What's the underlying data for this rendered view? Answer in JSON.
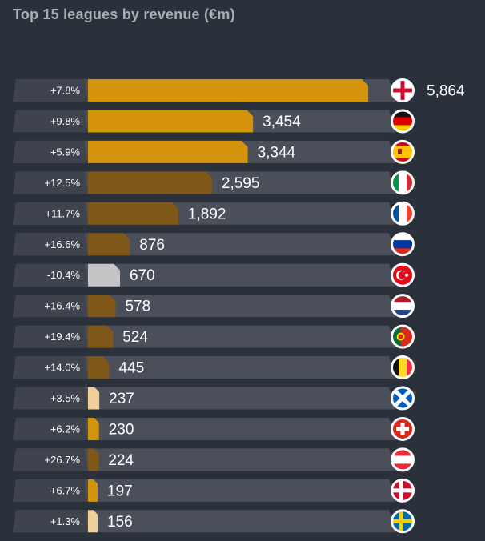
{
  "chart_data": {
    "type": "bar",
    "orientation": "horizontal",
    "title": "Top 15 leagues by revenue (€m)",
    "xlabel": "",
    "ylabel": "",
    "xlim": [
      0,
      5864
    ],
    "grid": false,
    "legend": "none",
    "categories": [
      "England",
      "Germany",
      "Spain",
      "Italy",
      "France",
      "Russia",
      "Turkey",
      "Netherlands",
      "Portugal",
      "Belgium",
      "Scotland",
      "Switzerland",
      "Austria",
      "Denmark",
      "Sweden"
    ],
    "values": [
      5864,
      3454,
      3344,
      2595,
      1892,
      876,
      670,
      578,
      524,
      445,
      237,
      230,
      224,
      197,
      156
    ],
    "value_labels": [
      "5,864",
      "3,454",
      "3,344",
      "2,595",
      "1,892",
      "876",
      "670",
      "578",
      "524",
      "445",
      "237",
      "230",
      "224",
      "197",
      "156"
    ],
    "growth_labels": [
      "+7.8%",
      "+9.8%",
      "+5.9%",
      "+12.5%",
      "+11.7%",
      "+16.6%",
      "-10.4%",
      "+16.4%",
      "+19.4%",
      "+14.0%",
      "+3.5%",
      "+6.2%",
      "+26.7%",
      "+6.7%",
      "+1.3%"
    ],
    "growth": [
      7.8,
      9.8,
      5.9,
      12.5,
      11.7,
      16.6,
      -10.4,
      16.4,
      19.4,
      14.0,
      3.5,
      6.2,
      26.7,
      6.7,
      1.3
    ],
    "flag_icons": [
      "england-flag-icon",
      "germany-flag-icon",
      "spain-flag-icon",
      "italy-flag-icon",
      "france-flag-icon",
      "russia-flag-icon",
      "turkey-flag-icon",
      "netherlands-flag-icon",
      "portugal-flag-icon",
      "belgium-flag-icon",
      "scotland-flag-icon",
      "switzerland-flag-icon",
      "austria-flag-icon",
      "denmark-flag-icon",
      "sweden-flag-icon"
    ],
    "bar_colors": [
      "#d4930a",
      "#d4930a",
      "#d4930a",
      "#7f5718",
      "#7f5718",
      "#7f5718",
      "#c5c5c7",
      "#7f5718",
      "#7f5718",
      "#7f5718",
      "#efd09a",
      "#d4930a",
      "#7f5718",
      "#d4930a",
      "#efd09a"
    ],
    "colors": {
      "background": "#2b313b",
      "track": "#4a4f5a",
      "growth_cell": "#3e434d",
      "title": "#a9adb4",
      "text": "#ffffff"
    }
  }
}
